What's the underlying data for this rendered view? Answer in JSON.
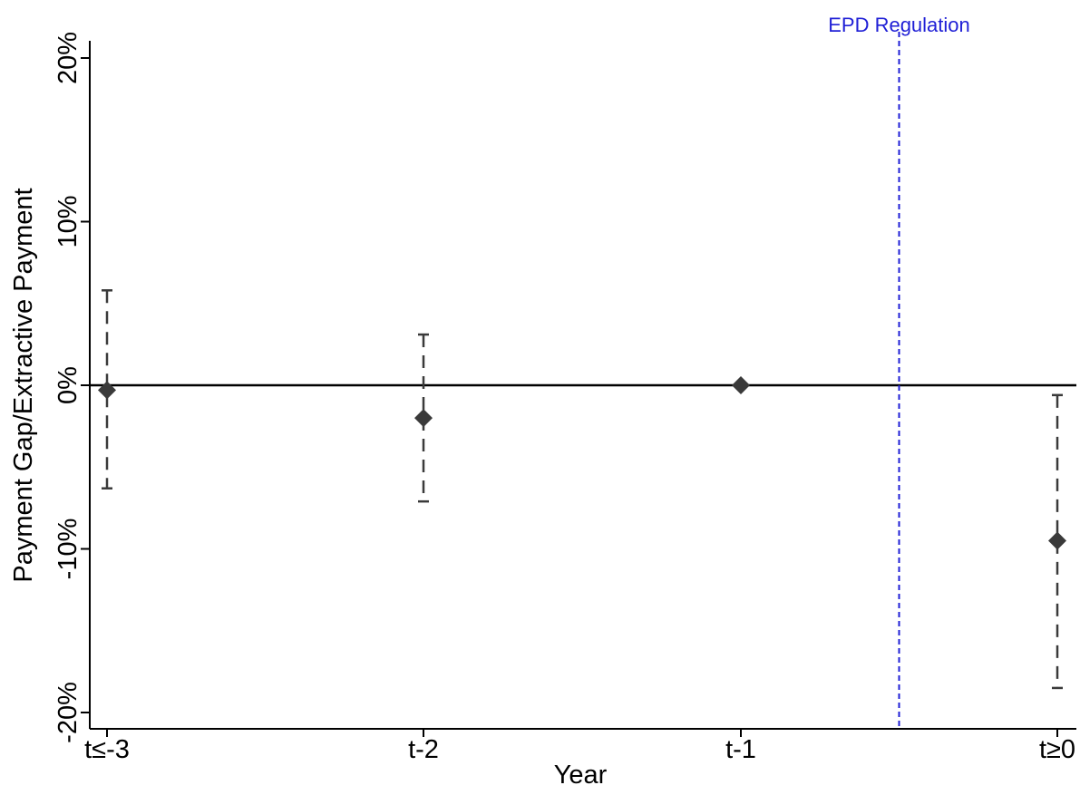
{
  "chart_data": {
    "type": "scatter",
    "title": "",
    "xlabel": "Year",
    "ylabel": "Payment Gap/Extractive Payment",
    "categories": [
      "t≤-3",
      "t-2",
      "t-1",
      "t≥0"
    ],
    "y_ticks": [
      -20,
      -10,
      0,
      10,
      20
    ],
    "y_tick_labels": [
      "-20%",
      "-10%",
      "0%",
      "10%",
      "20%"
    ],
    "ylim": [
      -21,
      21
    ],
    "grid": false,
    "points": [
      {
        "category": "t≤-3",
        "estimate": -0.3,
        "ci_low": -6.3,
        "ci_high": 5.8
      },
      {
        "category": "t-2",
        "estimate": -2.0,
        "ci_low": -7.1,
        "ci_high": 3.1
      },
      {
        "category": "t-1",
        "estimate": 0.0,
        "ci_low": null,
        "ci_high": null
      },
      {
        "category": "t≥0",
        "estimate": -9.5,
        "ci_low": -18.5,
        "ci_high": -0.6
      }
    ],
    "reference_lines": {
      "horizontal_zero": 0,
      "vertical_event": {
        "position_between": [
          "t-1",
          "t≥0"
        ],
        "fraction": 0.5,
        "label": "EPD Regulation",
        "color": "#1f1fd6"
      }
    },
    "colors": {
      "marker": "#3a3a3a",
      "ci": "#3a3a3a",
      "axis": "#000000",
      "zero_line": "#000000",
      "event_line": "#1f1fd6"
    }
  }
}
